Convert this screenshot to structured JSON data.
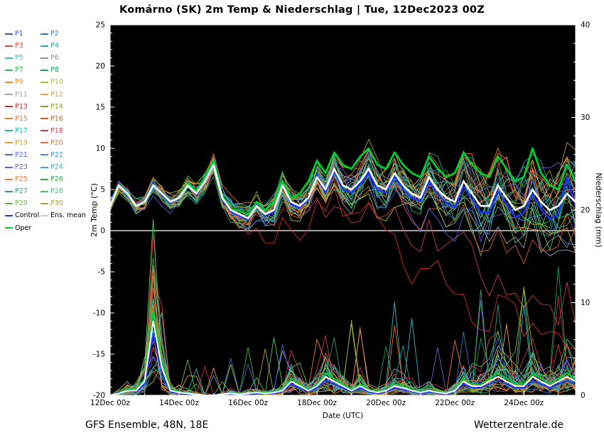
{
  "title": "Komárno  (SK)  2m Temp & Niederschlag | Tue, 12Dec2023 00Z",
  "footer": {
    "left": "GFS Ensemble, 48N, 18E",
    "right": "Wetterzentrale.de"
  },
  "legend": {
    "members": [
      {
        "label": "P1",
        "color": "#3a56d4"
      },
      {
        "label": "P2",
        "color": "#2f7fd0"
      },
      {
        "label": "P3",
        "color": "#d04a3a"
      },
      {
        "label": "P4",
        "color": "#2aa8a8"
      },
      {
        "label": "P5",
        "color": "#3fb5c9"
      },
      {
        "label": "P6",
        "color": "#8a9a8a"
      },
      {
        "label": "P7",
        "color": "#2dbb4e"
      },
      {
        "label": "P8",
        "color": "#10a35a"
      },
      {
        "label": "P9",
        "color": "#f08a1d"
      },
      {
        "label": "P10",
        "color": "#a8c32a"
      },
      {
        "label": "P11",
        "color": "#9aa8b8"
      },
      {
        "label": "P12",
        "color": "#f09a4a"
      },
      {
        "label": "P13",
        "color": "#d42a2a"
      },
      {
        "label": "P14",
        "color": "#8a9a2d"
      },
      {
        "label": "P15",
        "color": "#f0762d"
      },
      {
        "label": "P16",
        "color": "#e05a1a"
      },
      {
        "label": "P17",
        "color": "#17b8a6"
      },
      {
        "label": "P18",
        "color": "#c93a4e"
      },
      {
        "label": "P19",
        "color": "#e89a2d"
      },
      {
        "label": "P20",
        "color": "#f06a2a"
      },
      {
        "label": "P21",
        "color": "#4a66e8"
      },
      {
        "label": "P22",
        "color": "#3a93f0"
      },
      {
        "label": "P23",
        "color": "#6a5ad0"
      },
      {
        "label": "P24",
        "color": "#35b3cc"
      },
      {
        "label": "P25",
        "color": "#e87a4a"
      },
      {
        "label": "P26",
        "color": "#35a845"
      },
      {
        "label": "P27",
        "color": "#2a9a8a"
      },
      {
        "label": "P28",
        "color": "#46c86a"
      },
      {
        "label": "P29",
        "color": "#6ab846"
      },
      {
        "label": "P30",
        "color": "#a8a032"
      }
    ],
    "special": [
      {
        "label": "Control",
        "color": "#1a35ee"
      },
      {
        "label": "Ens. mean",
        "color": "#ffffff",
        "swatch": "#c8c8c8"
      },
      {
        "label": "Oper",
        "color": "#00cc33"
      }
    ]
  },
  "chart_data": {
    "type": "line",
    "title": "Komárno (SK) 2m Temp & Niederschlag | Tue, 12Dec2023 00Z",
    "background": "#000000",
    "x_axis": {
      "label": "Date (UTC)",
      "start": "12Dec2023 00Z",
      "step_hours": 6,
      "points": 55,
      "tick_labels": [
        "12Dec 00z",
        "14Dec 00z",
        "16Dec 00z",
        "18Dec 00z",
        "20Dec 00z",
        "22Dec 00z",
        "24Dec 00z"
      ]
    },
    "y_left": {
      "label": "2m Temp (°C)",
      "min": -20,
      "max": 25,
      "ticks": [
        -20,
        -15,
        -10,
        -5,
        0,
        5,
        10,
        15,
        20,
        25
      ]
    },
    "y_right": {
      "label": "Niederschlag (mm)",
      "min": 0,
      "max": 40,
      "ticks": [
        0,
        10,
        20,
        30,
        40
      ]
    },
    "zero_line_temp": 0,
    "series": {
      "ens_mean_temp": [
        3.0,
        5.5,
        4.5,
        3.0,
        3.5,
        5.5,
        4.5,
        3.5,
        4.0,
        5.5,
        4.5,
        6.0,
        8.0,
        4.0,
        2.5,
        2.0,
        1.5,
        3.0,
        2.0,
        2.5,
        5.5,
        3.5,
        3.0,
        4.0,
        6.5,
        5.0,
        7.5,
        5.5,
        5.0,
        6.0,
        7.5,
        5.5,
        5.0,
        7.0,
        5.5,
        4.5,
        4.0,
        6.5,
        5.0,
        4.0,
        3.5,
        6.0,
        4.5,
        3.0,
        3.0,
        5.5,
        4.0,
        2.5,
        3.0,
        5.0,
        3.5,
        2.5,
        3.0,
        4.5,
        3.5
      ],
      "control_temp": [
        3.2,
        5.8,
        4.2,
        3.1,
        3.6,
        5.8,
        4.3,
        3.3,
        4.2,
        5.8,
        4.3,
        6.3,
        8.3,
        3.8,
        2.3,
        1.8,
        1.3,
        3.2,
        1.8,
        2.3,
        5.8,
        3.2,
        2.8,
        3.8,
        6.8,
        4.6,
        7.2,
        5.0,
        4.6,
        5.6,
        7.0,
        5.0,
        4.6,
        6.6,
        5.0,
        4.0,
        3.6,
        6.0,
        4.4,
        3.4,
        2.8,
        5.4,
        3.8,
        2.2,
        2.2,
        4.8,
        3.2,
        1.6,
        2.2,
        4.4,
        2.6,
        1.4,
        2.0,
        6.5,
        3.0
      ],
      "oper_temp": [
        3.0,
        5.6,
        4.4,
        3.0,
        3.5,
        5.6,
        4.6,
        3.5,
        4.1,
        5.8,
        4.8,
        6.5,
        8.5,
        4.2,
        2.6,
        2.4,
        2.0,
        3.5,
        2.5,
        3.5,
        6.0,
        4.0,
        4.5,
        6.0,
        8.5,
        7.0,
        9.5,
        8.0,
        7.5,
        9.0,
        10.0,
        8.0,
        7.5,
        9.5,
        8.0,
        7.0,
        6.5,
        9.0,
        7.5,
        6.5,
        7.0,
        9.5,
        8.0,
        7.0,
        6.5,
        9.0,
        7.5,
        6.0,
        6.5,
        10.0,
        7.0,
        5.5,
        5.0,
        8.0,
        6.0
      ],
      "ens_mean_precip": [
        0,
        0.2,
        0.5,
        0.5,
        1.5,
        8,
        3,
        0.5,
        0.3,
        0.2,
        0.1,
        0,
        0,
        0.1,
        0.2,
        0.1,
        0.2,
        0.3,
        0.2,
        0.3,
        0.5,
        1.5,
        1,
        0.5,
        1,
        2,
        1.5,
        1,
        0.5,
        1,
        0.5,
        0.3,
        0.5,
        1,
        0.8,
        0.5,
        0.3,
        0.5,
        0.3,
        0.2,
        0.5,
        1.5,
        1,
        1,
        1.5,
        2,
        1.5,
        1,
        1,
        2,
        1.5,
        1,
        1.5,
        2,
        1.5
      ],
      "control_precip": [
        0,
        0.3,
        0.6,
        0.4,
        1.2,
        6.5,
        2.5,
        0.4,
        0.2,
        0.1,
        0,
        0,
        0,
        0,
        0.1,
        0.1,
        0.1,
        0.2,
        0.2,
        0.2,
        0.4,
        1.2,
        0.8,
        0.4,
        0.8,
        1.6,
        1.2,
        0.8,
        0.4,
        0.8,
        0.4,
        0.2,
        0.4,
        0.8,
        0.6,
        0.4,
        0.2,
        0.4,
        0.2,
        0.1,
        0.4,
        1.2,
        0.8,
        0.8,
        1.2,
        1.6,
        1.2,
        0.8,
        0.8,
        1.6,
        1.2,
        0.8,
        1.2,
        1.6,
        1.2
      ],
      "oper_precip": [
        0,
        0.2,
        0.7,
        0.6,
        1.8,
        9,
        3.5,
        0.6,
        0.4,
        0.2,
        0.1,
        0,
        0,
        0.1,
        0.2,
        0.2,
        0.2,
        0.4,
        0.3,
        0.4,
        0.6,
        1.8,
        1.2,
        0.6,
        1.2,
        2.4,
        1.8,
        1.2,
        0.6,
        1.2,
        0.6,
        0.4,
        0.6,
        1.2,
        1.0,
        0.6,
        0.4,
        0.6,
        0.4,
        0.2,
        0.6,
        1.8,
        1.2,
        1.2,
        1.8,
        2.4,
        1.8,
        1.2,
        1.2,
        2.4,
        1.8,
        1.2,
        1.8,
        2.4,
        1.8
      ]
    },
    "ensemble": {
      "count": 30,
      "seed": 20231212,
      "note": "30 perturbed members drawn around ens mean; spread grows with lead time, a few cold outliers after 22Dec; precip spikes up to ~19mm near 13Dec and after 22Dec"
    }
  }
}
